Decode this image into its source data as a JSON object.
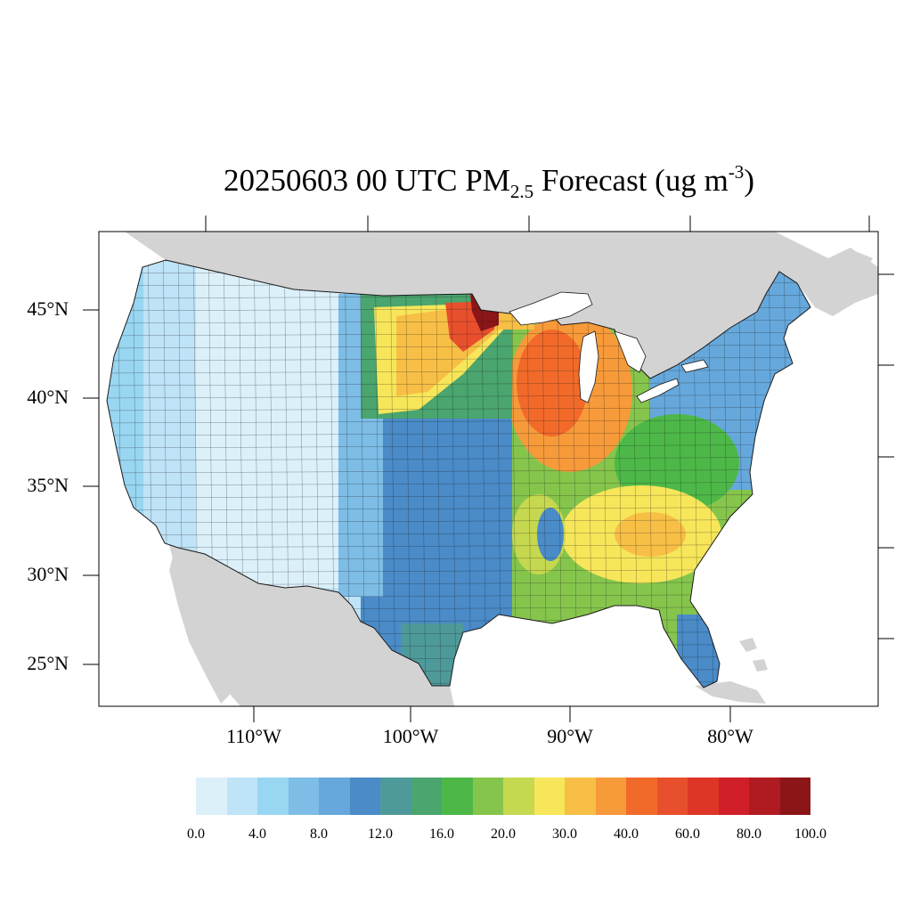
{
  "title": {
    "prefix": "20250603 00 UTC PM",
    "subscript": "2.5",
    "middle": " Forecast (ug m",
    "superscript": "-3",
    "suffix": ")"
  },
  "axes": {
    "lat_labels": [
      "45°N",
      "40°N",
      "35°N",
      "30°N",
      "25°N"
    ],
    "lon_labels": [
      "110°W",
      "100°W",
      "90°W",
      "80°W"
    ]
  },
  "colors": {
    "land_outside": "#d3d3d3",
    "water": "#ffffff",
    "county_border": "#1a1a1a"
  },
  "colorbar": {
    "colors": [
      "#dcf0fa",
      "#bfe3f7",
      "#99d6f2",
      "#7dbde6",
      "#66a8dc",
      "#4a8bc8",
      "#4e9a9a",
      "#4aa56e",
      "#4db848",
      "#86c54c",
      "#c6d84f",
      "#f7e65a",
      "#f8bf46",
      "#f79a3a",
      "#f26a2a",
      "#e84f2c",
      "#de3526",
      "#d11f2a",
      "#b01b21",
      "#8c1518"
    ],
    "tick_labels": [
      "0.0",
      "4.0",
      "8.0",
      "12.0",
      "16.0",
      "20.0",
      "30.0",
      "40.0",
      "60.0",
      "80.0",
      "100.0"
    ]
  }
}
